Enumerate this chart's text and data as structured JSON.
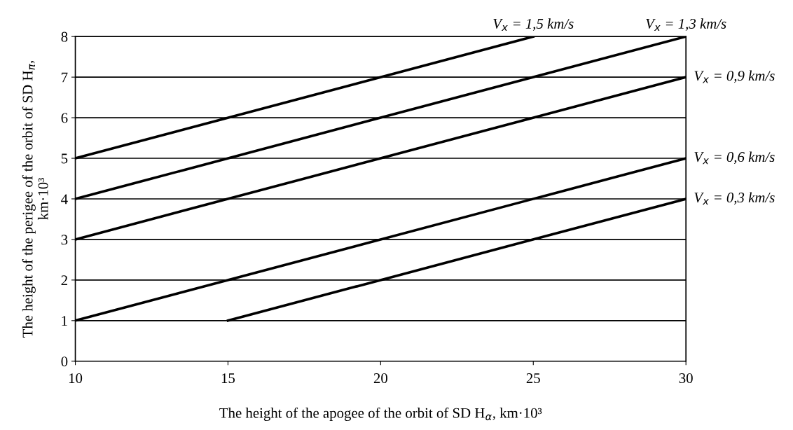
{
  "chart_data": {
    "type": "line",
    "xlabel": "The height of the apogee of the orbit of SD H$_{α}$, km·10³",
    "ylabel": "The height of the perigee of the orbit of SD H$_{π}$,\nkm·10³",
    "series": [
      {
        "name": "V$_{x}$ = 1,5 km/s",
        "color": "#000000",
        "x": [
          10,
          25
        ],
        "values": [
          5,
          8
        ]
      },
      {
        "name": "V$_{x}$ = 1,3 km/s",
        "color": "#000000",
        "x": [
          10,
          30
        ],
        "values": [
          4,
          8
        ]
      },
      {
        "name": "V$_{x}$ = 0,9 km/s",
        "color": "#000000",
        "x": [
          10,
          30
        ],
        "values": [
          3,
          7
        ]
      },
      {
        "name": "V$_{x}$ = 0,6 km/s",
        "color": "#000000",
        "x": [
          10,
          30
        ],
        "values": [
          1,
          5
        ]
      },
      {
        "name": "V$_{x}$ = 0,3 km/s",
        "color": "#000000",
        "x": [
          15,
          30
        ],
        "values": [
          1,
          4
        ]
      }
    ],
    "xlim": [
      10,
      30
    ],
    "xticks": [
      10,
      15,
      20,
      25,
      30
    ],
    "ylim": [
      0,
      8
    ],
    "yticks": [
      0,
      1,
      2,
      3,
      4,
      5,
      6,
      7,
      8
    ],
    "grid": "y",
    "legend": false,
    "marker": "none",
    "line_style": "solid"
  }
}
